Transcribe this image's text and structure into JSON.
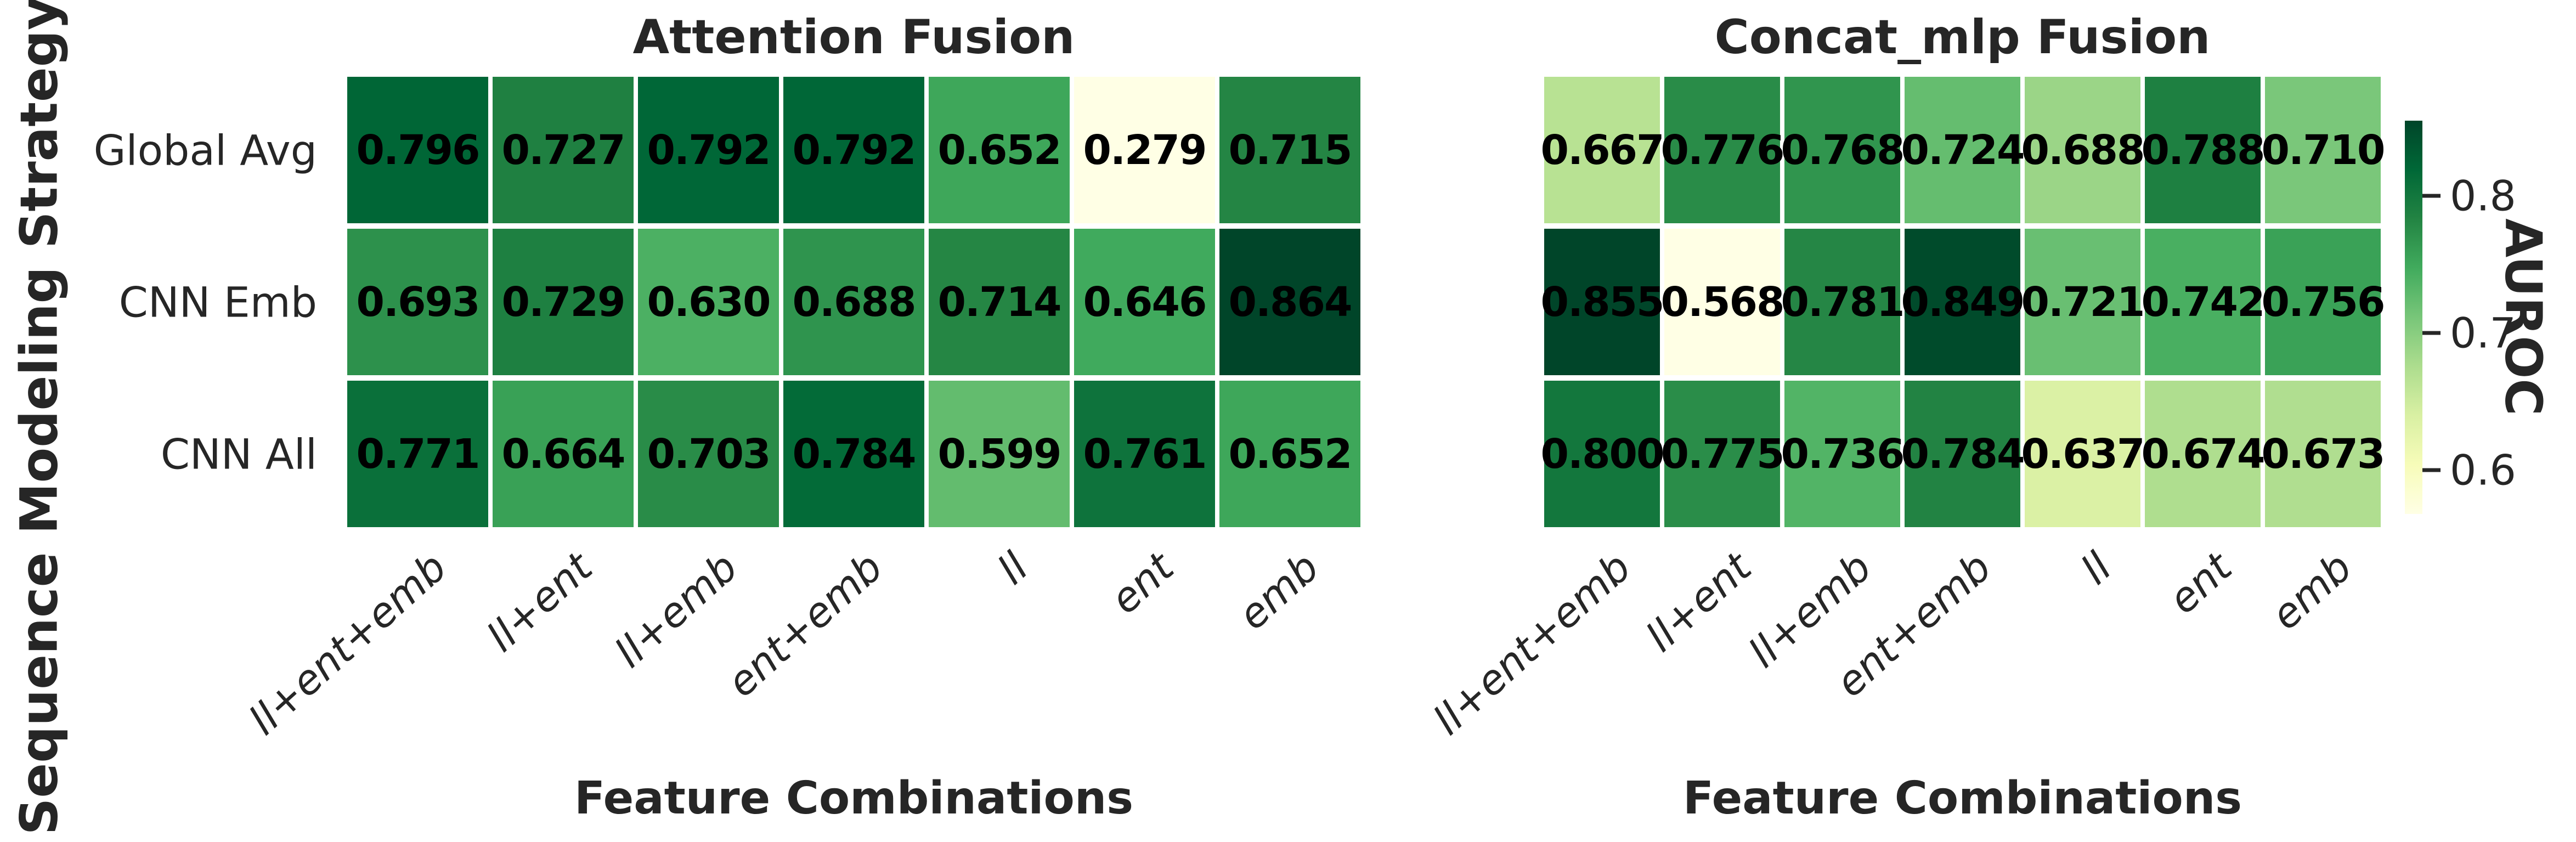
{
  "figure": {
    "background": "#ffffff",
    "text_color": "#262626",
    "annotation_color": "#000000",
    "grid_gap_color": "#ffffff"
  },
  "chart_data": {
    "type": "heatmap",
    "ylabel": "Sequence Modeling Strategy",
    "xlabel": "Feature Combinations",
    "rows": [
      "Global Avg",
      "CNN Emb",
      "CNN All"
    ],
    "columns": [
      "ll+ent+emb",
      "ll+ent",
      "ll+emb",
      "ent+emb",
      "ll",
      "ent",
      "emb"
    ],
    "heatmaps": [
      {
        "title": "Attention Fusion",
        "values": [
          [
            0.796,
            0.727,
            0.792,
            0.792,
            0.652,
            0.279,
            0.715
          ],
          [
            0.693,
            0.729,
            0.63,
            0.688,
            0.714,
            0.646,
            0.864
          ],
          [
            0.771,
            0.664,
            0.703,
            0.784,
            0.599,
            0.761,
            0.652
          ]
        ],
        "color_scale": {
          "vmin": 0.279,
          "vmax": 0.864
        }
      },
      {
        "title": "Concat_mlp Fusion",
        "values": [
          [
            0.667,
            0.776,
            0.768,
            0.724,
            0.688,
            0.788,
            0.71
          ],
          [
            0.855,
            0.568,
            0.781,
            0.849,
            0.721,
            0.742,
            0.756
          ],
          [
            0.8,
            0.775,
            0.736,
            0.784,
            0.637,
            0.674,
            0.673
          ]
        ],
        "color_scale": {
          "vmin": 0.568,
          "vmax": 0.855
        }
      }
    ],
    "value_format_decimals": 3,
    "annotation_style": "bold black",
    "xtick_style": "italic rotated 42deg",
    "colorbar": {
      "label": "AUROC",
      "ticks": [
        0.8,
        0.7,
        0.6
      ],
      "vmin": 0.568,
      "vmax": 0.855,
      "colormap": "YlGn",
      "colormap_stops": [
        "#ffffe5",
        "#f7fcb9",
        "#d9f0a3",
        "#addd8e",
        "#78c679",
        "#41ab5d",
        "#238443",
        "#006837",
        "#004529"
      ]
    },
    "legend_position": "right colorbar",
    "grid": false
  }
}
